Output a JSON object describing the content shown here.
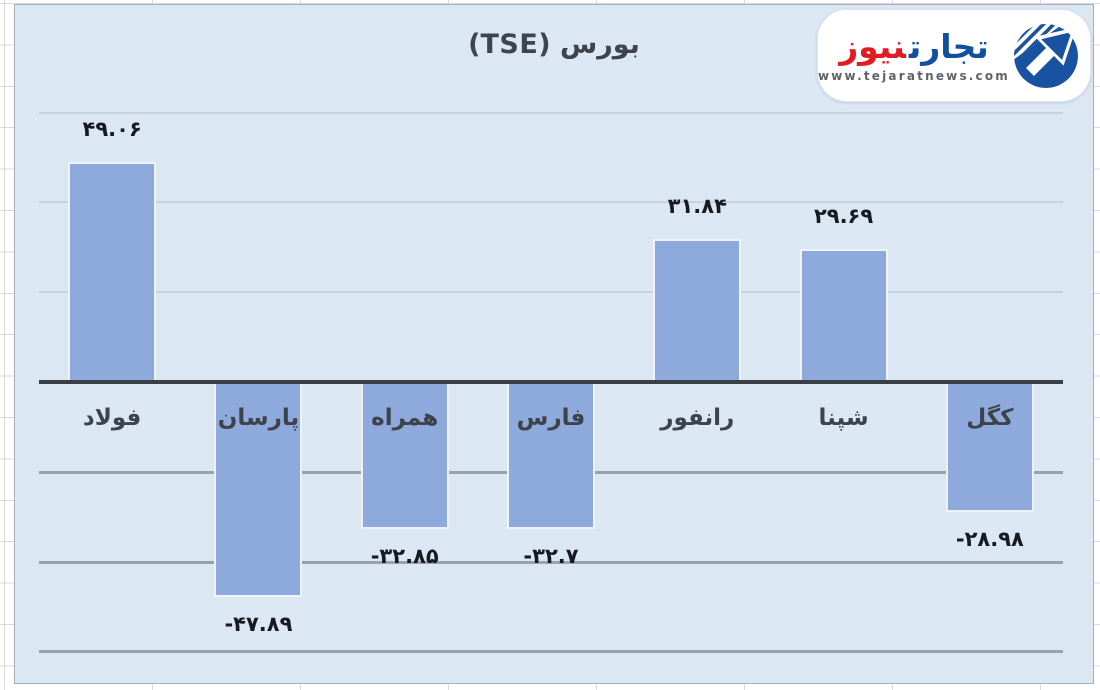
{
  "chart_data": {
    "type": "bar",
    "title": "بورس (TSE)",
    "categories": [
      "فولاد",
      "پارسان",
      "همراه",
      "فارس",
      "رانفور",
      "شپنا",
      "کگل"
    ],
    "values": [
      49.06,
      -47.89,
      -32.85,
      -32.7,
      31.84,
      29.69,
      -28.98
    ],
    "value_labels": [
      "۴۹.۰۶",
      "-۴۷.۸۹",
      "-۳۲.۸۵",
      "-۳۲.۷",
      "۳۱.۸۴",
      "۲۹.۶۹",
      "-۲۸.۹۸"
    ],
    "xlabel": "",
    "ylabel": "",
    "ylim": [
      -60,
      60
    ],
    "gridline_step": 20,
    "grid": true,
    "legend": false,
    "bar_color": "#8ea9db",
    "plot_background": "#dce7f4",
    "axis_color": "#3a3f45"
  },
  "logo": {
    "brand_primary": "تجارت",
    "brand_secondary": "نیوز",
    "url": "www.tejaratnews.com",
    "brand_primary_color": "#10509e",
    "brand_secondary_color": "#e21b22",
    "emblem_color": "#1a52a2"
  }
}
